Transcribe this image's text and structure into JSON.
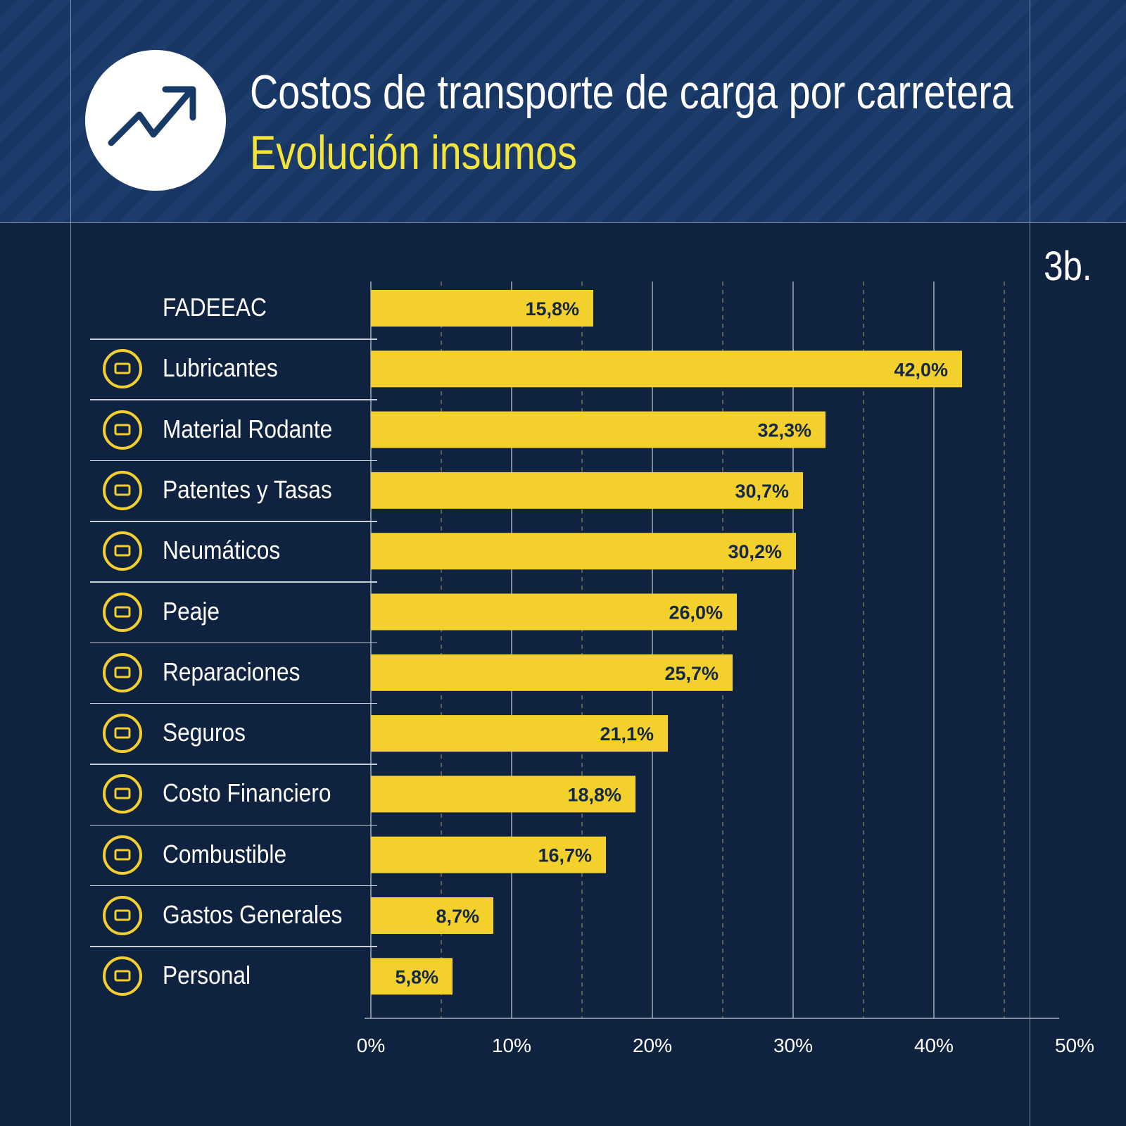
{
  "header": {
    "title": "Costos de transporte de carga por carretera",
    "subtitle": "Evolución insumos",
    "tag": "3b.",
    "icon": "trending-up-icon"
  },
  "colors": {
    "bar": "#f3d02c",
    "background": "#0f2341",
    "subtitle": "#f5e43a"
  },
  "chart_data": {
    "type": "bar",
    "orientation": "horizontal",
    "categories": [
      "FADEEAC",
      "Lubricantes",
      "Material Rodante",
      "Patentes y Tasas",
      "Neumáticos",
      "Peaje",
      "Reparaciones",
      "Seguros",
      "Costo Financiero",
      "Combustible",
      "Gastos Generales",
      "Personal"
    ],
    "values": [
      15.8,
      42.0,
      32.3,
      30.7,
      30.2,
      26.0,
      25.7,
      21.1,
      18.8,
      16.7,
      8.7,
      5.8
    ],
    "data_labels": [
      "15,8%",
      "42,0%",
      "32,3%",
      "30,7%",
      "30,2%",
      "26,0%",
      "25,7%",
      "21,1%",
      "18,8%",
      "16,7%",
      "8,7%",
      "5,8%"
    ],
    "icons": [
      "",
      "oil-can-icon",
      "truck-icon",
      "license-plate-icon",
      "tire-icon",
      "toll-icon",
      "wrench-icon",
      "lock-icon",
      "dollar-icon",
      "fuel-pump-icon",
      "banknote-icon",
      "truck-icon"
    ],
    "xlim": [
      0,
      50
    ],
    "xticks": [
      "0%",
      "10%",
      "20%",
      "30%",
      "40%",
      "50%"
    ],
    "grid": true
  }
}
